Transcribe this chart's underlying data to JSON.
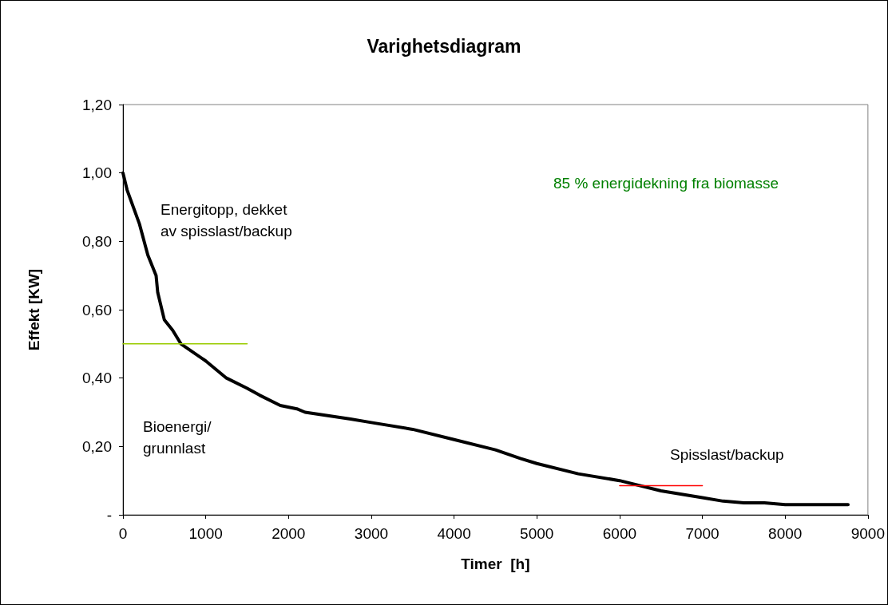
{
  "chart_data": {
    "type": "line",
    "title": "Varighetsdiagram",
    "xlabel": "Timer  [h]",
    "ylabel": "Effekt [KW]",
    "xlim": [
      0,
      9000
    ],
    "xticks": [
      0,
      1000,
      2000,
      3000,
      4000,
      5000,
      6000,
      7000,
      8000,
      9000
    ],
    "ylim": [
      0,
      1.2
    ],
    "yticks": [
      {
        "value": 0,
        "label": "-"
      },
      {
        "value": 0.2,
        "label": "0,20"
      },
      {
        "value": 0.4,
        "label": "0,40"
      },
      {
        "value": 0.6,
        "label": "0,60"
      },
      {
        "value": 0.8,
        "label": "0,80"
      },
      {
        "value": 1,
        "label": "1,00"
      },
      {
        "value": 1.2,
        "label": "1,20"
      }
    ],
    "grid": false,
    "marker": "none",
    "line_style": "solid",
    "series": [
      {
        "color": "#000000",
        "x": [
          0,
          50,
          200,
          300,
          400,
          420,
          500,
          600,
          700,
          1000,
          1250,
          1500,
          1650,
          1900,
          2100,
          2200,
          2750,
          3000,
          3500,
          4000,
          4500,
          4800,
          5000,
          5500,
          6000,
          6500,
          7000,
          7250,
          7500,
          7750,
          8000,
          8760
        ],
        "values": [
          1.0,
          0.95,
          0.85,
          0.76,
          0.7,
          0.65,
          0.57,
          0.54,
          0.5,
          0.45,
          0.4,
          0.37,
          0.35,
          0.32,
          0.31,
          0.3,
          0.28,
          0.27,
          0.25,
          0.22,
          0.19,
          0.165,
          0.15,
          0.12,
          0.1,
          0.07,
          0.05,
          0.04,
          0.035,
          0.035,
          0.03,
          0.03
        ]
      },
      {
        "color": "#99cc00",
        "x": [
          0,
          1500
        ],
        "values": [
          0.5,
          0.5
        ]
      },
      {
        "color": "#ff0000",
        "x": [
          6000,
          7000
        ],
        "values": [
          0.085,
          0.085
        ]
      }
    ],
    "annotations": [
      "Energitopp, dekket\nav spisslast/backup",
      "Bioenergi/\ngrunnlast",
      "85 % energidekning fra biomasse",
      "Spisslast/backup"
    ]
  }
}
